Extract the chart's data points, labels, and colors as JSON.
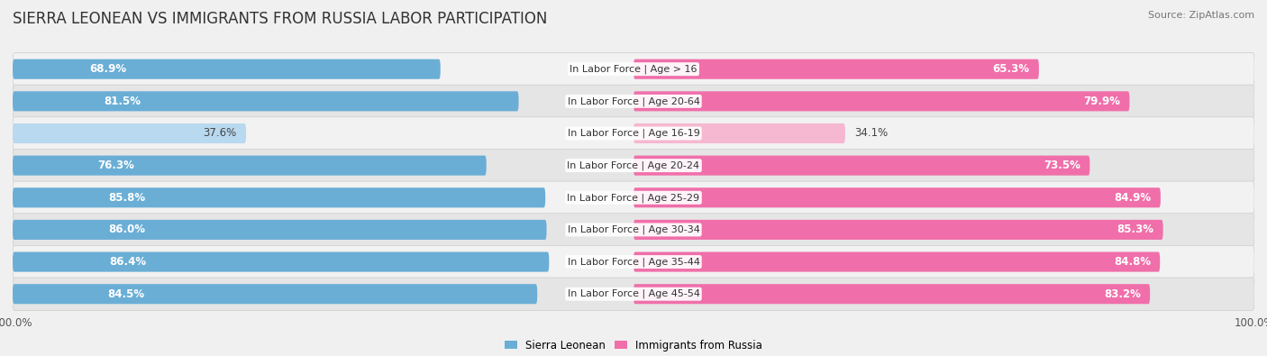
{
  "title": "SIERRA LEONEAN VS IMMIGRANTS FROM RUSSIA LABOR PARTICIPATION",
  "source": "Source: ZipAtlas.com",
  "categories": [
    "In Labor Force | Age > 16",
    "In Labor Force | Age 20-64",
    "In Labor Force | Age 16-19",
    "In Labor Force | Age 20-24",
    "In Labor Force | Age 25-29",
    "In Labor Force | Age 30-34",
    "In Labor Force | Age 35-44",
    "In Labor Force | Age 45-54"
  ],
  "sierra_leone_values": [
    68.9,
    81.5,
    37.6,
    76.3,
    85.8,
    86.0,
    86.4,
    84.5
  ],
  "russia_values": [
    65.3,
    79.9,
    34.1,
    73.5,
    84.9,
    85.3,
    84.8,
    83.2
  ],
  "sierra_leone_color_full": "#6aaed6",
  "sierra_leone_color_light": "#b8d9ef",
  "russia_color_full": "#f06faa",
  "russia_color_light": "#f5b8d0",
  "bar_height": 0.62,
  "row_bg_light": "#f2f2f2",
  "row_bg_dark": "#e5e5e5",
  "background_color": "#f0f0f0",
  "max_value": 100.0,
  "legend_label_sl": "Sierra Leonean",
  "legend_label_ru": "Immigrants from Russia",
  "title_fontsize": 12,
  "label_fontsize": 8.5,
  "tick_fontsize": 8.5,
  "category_fontsize": 8
}
